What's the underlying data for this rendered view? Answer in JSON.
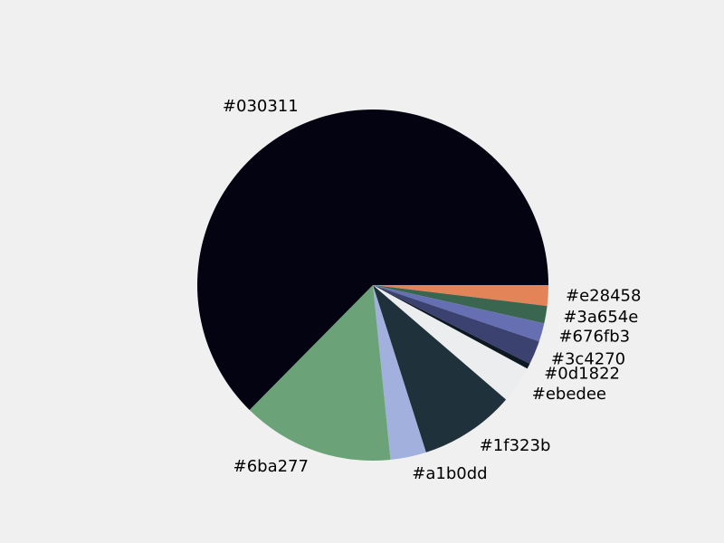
{
  "chart_data": {
    "type": "pie",
    "title": "",
    "labels": [
      "#e28458",
      "#3a654e",
      "#676fb3",
      "#3c4270",
      "#0d1822",
      "#ebedee",
      "#1f323b",
      "#a1b0dd",
      "#6ba277",
      "#030311"
    ],
    "colors": [
      "#e28458",
      "#3a654e",
      "#676fb3",
      "#3c4270",
      "#0d1822",
      "#ebedee",
      "#1f323b",
      "#a1b0dd",
      "#6ba277",
      "#030311"
    ],
    "values": [
      1.9,
      1.6,
      1.7,
      2.2,
      0.5,
      3.4,
      8.8,
      3.3,
      14.0,
      62.6
    ],
    "start_angle_deg": 0,
    "direction": "counterclockwise-from-bottom-right",
    "legend": "none"
  }
}
